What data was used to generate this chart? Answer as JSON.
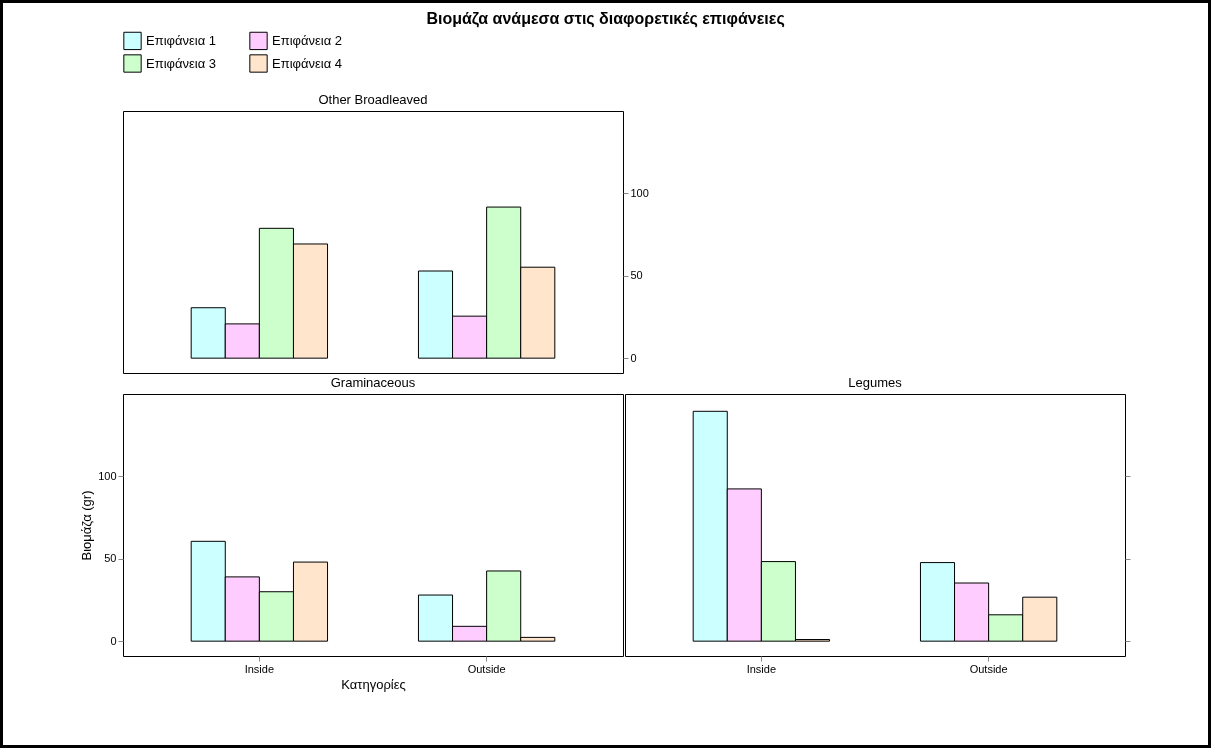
{
  "chart_data": [
    {
      "type": "bar",
      "title": "Other  Broadleaved",
      "categories": [
        "Inside",
        "Outside"
      ],
      "legend": "top",
      "ylim": [
        -9,
        150
      ],
      "yticks": [
        0,
        50,
        100
      ],
      "tick_labels": "y",
      "series": [
        {
          "name": "Επιφάνεια 1",
          "color": "#ccffff",
          "values": [
            30.6,
            52.9
          ]
        },
        {
          "name": "Επιφάνεια 2",
          "color": "#ffccff",
          "values": [
            20.8,
            25.5
          ]
        },
        {
          "name": "Επιφάνεια 3",
          "color": "#ccffcc",
          "values": [
            78.8,
            91.7
          ]
        },
        {
          "name": "Επιφάνεια 4",
          "color": "#ffe5cc",
          "values": [
            69.3,
            55.2
          ]
        }
      ],
      "annotations": [
        "Βιομάζα ανάμεσα στις διαφορετικές επιφάνειες"
      ]
    },
    {
      "type": "bar",
      "title": "Graminaceous",
      "categories": [
        "Inside",
        "Outside"
      ],
      "ylim": [
        -9,
        150
      ],
      "yticks": [
        0,
        50,
        100
      ],
      "xlabel": "Κατηγορίες",
      "ylabel": "Βιομάζα (gr)",
      "series": [
        {
          "name": "Επιφάνεια 1",
          "color": "#ccffff",
          "values": [
            60.6,
            28
          ]
        },
        {
          "name": "Επιφάνεια 2",
          "color": "#ffccff",
          "values": [
            39,
            9
          ]
        },
        {
          "name": "Επιφάνεια 3",
          "color": "#ccffcc",
          "values": [
            30,
            42.6
          ]
        },
        {
          "name": "Επιφάνεια 4",
          "color": "#ffe5cc",
          "values": [
            48,
            2.3
          ]
        }
      ]
    },
    {
      "type": "bar",
      "title": "Legumes",
      "categories": [
        "Inside",
        "Outside"
      ],
      "ylim": [
        -9,
        150
      ],
      "yticks": [
        0,
        50,
        100
      ],
      "tick_labels": "x",
      "series": [
        {
          "name": "Επιφάνεια 1",
          "color": "#ccffff",
          "values": [
            139.5,
            47.7
          ]
        },
        {
          "name": "Επιφάνεια 2",
          "color": "#ffccff",
          "values": [
            92.4,
            35.3
          ]
        },
        {
          "name": "Επιφάνεια 3",
          "color": "#ccffcc",
          "values": [
            48.3,
            16
          ]
        },
        {
          "name": "Επιφάνεια 4",
          "color": "#ffe5cc",
          "values": [
            1,
            26.7
          ]
        }
      ]
    }
  ]
}
